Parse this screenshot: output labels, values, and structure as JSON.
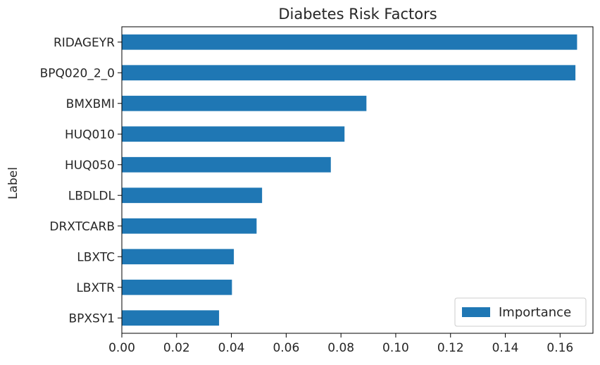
{
  "chart_data": {
    "type": "bar",
    "orientation": "horizontal",
    "title": "Diabetes Risk Factors",
    "xlabel": "",
    "ylabel": "Label",
    "categories": [
      "RIDAGEYR",
      "BPQ020_2_0",
      "BMXBMI",
      "HUQ010",
      "HUQ050",
      "LBDLDL",
      "DRXTCARB",
      "LBXTC",
      "LBXTR",
      "BPXSY1"
    ],
    "series": [
      {
        "name": "Importance",
        "values": [
          0.1662,
          0.1656,
          0.0893,
          0.0813,
          0.0763,
          0.0512,
          0.0492,
          0.0409,
          0.0402,
          0.0355
        ]
      }
    ],
    "xlim": [
      0,
      0.172
    ],
    "xticks": [
      0.0,
      0.02,
      0.04,
      0.06,
      0.08,
      0.1,
      0.12,
      0.14,
      0.16
    ],
    "xtick_labels": [
      "0.00",
      "0.02",
      "0.04",
      "0.06",
      "0.08",
      "0.10",
      "0.12",
      "0.14",
      "0.16"
    ],
    "grid": false,
    "legend_position": "lower-right",
    "bar_color": "#1f77b4"
  }
}
